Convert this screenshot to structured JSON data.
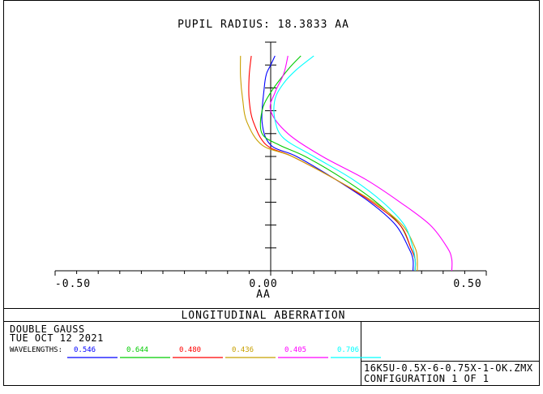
{
  "chart_data": {
    "type": "line",
    "title": "PUPIL RADIUS: 18.3833  AA",
    "xlabel": "AA",
    "ylabel": "",
    "xlim": [
      -0.5,
      0.5
    ],
    "ylim": [
      0,
      1
    ],
    "x_ticks": [
      "-0.50",
      "0.00",
      "0.50"
    ],
    "grid": false,
    "legend": "bottom",
    "series": [
      {
        "name": "0.546",
        "color": "#0000ff",
        "points": [
          [
            0.33,
            0
          ],
          [
            0.33,
            0.05
          ],
          [
            0.32,
            0.1
          ],
          [
            0.29,
            0.2
          ],
          [
            0.23,
            0.3
          ],
          [
            0.15,
            0.4
          ],
          [
            0.06,
            0.5
          ],
          [
            0.0,
            0.55
          ],
          [
            -0.02,
            0.65
          ],
          [
            -0.015,
            0.8
          ],
          [
            -0.01,
            0.86
          ],
          [
            0.0,
            0.9
          ],
          [
            0.01,
            0.94
          ]
        ]
      },
      {
        "name": "0.644",
        "color": "#00cc00",
        "points": [
          [
            0.335,
            0
          ],
          [
            0.335,
            0.05
          ],
          [
            0.325,
            0.1
          ],
          [
            0.3,
            0.2
          ],
          [
            0.245,
            0.3
          ],
          [
            0.17,
            0.4
          ],
          [
            0.08,
            0.5
          ],
          [
            0.02,
            0.55
          ],
          [
            -0.02,
            0.6
          ],
          [
            -0.02,
            0.7
          ],
          [
            0.0,
            0.78
          ],
          [
            0.04,
            0.88
          ],
          [
            0.07,
            0.94
          ]
        ]
      },
      {
        "name": "0.480",
        "color": "#ff0000",
        "points": [
          [
            0.335,
            0
          ],
          [
            0.335,
            0.05
          ],
          [
            0.325,
            0.1
          ],
          [
            0.3,
            0.2
          ],
          [
            0.235,
            0.3
          ],
          [
            0.15,
            0.4
          ],
          [
            0.05,
            0.5
          ],
          [
            -0.01,
            0.55
          ],
          [
            -0.04,
            0.65
          ],
          [
            -0.05,
            0.75
          ],
          [
            -0.05,
            0.85
          ],
          [
            -0.045,
            0.94
          ]
        ]
      },
      {
        "name": "0.436",
        "color": "#c8a000",
        "points": [
          [
            0.34,
            0
          ],
          [
            0.34,
            0.05
          ],
          [
            0.335,
            0.1
          ],
          [
            0.305,
            0.2
          ],
          [
            0.24,
            0.3
          ],
          [
            0.15,
            0.4
          ],
          [
            0.05,
            0.5
          ],
          [
            -0.02,
            0.55
          ],
          [
            -0.055,
            0.65
          ],
          [
            -0.065,
            0.75
          ],
          [
            -0.07,
            0.85
          ],
          [
            -0.07,
            0.94
          ]
        ]
      },
      {
        "name": "0.405",
        "color": "#ff00ff",
        "points": [
          [
            0.42,
            0
          ],
          [
            0.42,
            0.05
          ],
          [
            0.41,
            0.1
          ],
          [
            0.37,
            0.2
          ],
          [
            0.3,
            0.3
          ],
          [
            0.22,
            0.4
          ],
          [
            0.12,
            0.5
          ],
          [
            0.04,
            0.6
          ],
          [
            0.0,
            0.7
          ],
          [
            0.01,
            0.78
          ],
          [
            0.03,
            0.86
          ],
          [
            0.04,
            0.94
          ]
        ]
      },
      {
        "name": "0.706",
        "color": "#00ffff",
        "points": [
          [
            0.335,
            0
          ],
          [
            0.335,
            0.05
          ],
          [
            0.33,
            0.1
          ],
          [
            0.31,
            0.2
          ],
          [
            0.26,
            0.3
          ],
          [
            0.19,
            0.4
          ],
          [
            0.1,
            0.5
          ],
          [
            0.03,
            0.58
          ],
          [
            0.01,
            0.66
          ],
          [
            0.01,
            0.75
          ],
          [
            0.03,
            0.82
          ],
          [
            0.06,
            0.88
          ],
          [
            0.1,
            0.94
          ]
        ]
      }
    ]
  },
  "info": {
    "panel_title": "LONGITUDINAL ABERRATION",
    "lens_name": "DOUBLE GAUSS",
    "date": "TUE OCT 12 2021",
    "wavelengths_label": "WAVELENGTHS:",
    "file_name": "16K5U-0.5X-6-0.75X-1-OK.ZMX",
    "configuration": "CONFIGURATION 1 OF 1"
  }
}
